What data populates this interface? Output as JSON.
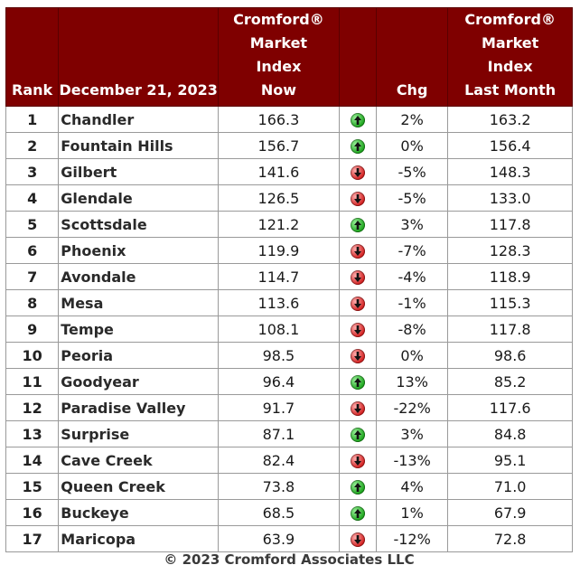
{
  "header": {
    "rank": "Rank",
    "date": "December 21, 2023",
    "now_lines": [
      "Cromford®",
      "Market",
      "Index",
      "Now"
    ],
    "chg": "Chg",
    "last_lines": [
      "Cromford®",
      "Market",
      "Index",
      "Last Month"
    ]
  },
  "colors": {
    "header_bg": "#7f0000",
    "up": "#1aa31a",
    "down": "#d11d1d"
  },
  "rows": [
    {
      "rank": "1",
      "name": "Chandler",
      "now": "166.3",
      "dir": "up",
      "chg": "2%",
      "last": "163.2"
    },
    {
      "rank": "2",
      "name": "Fountain Hills",
      "now": "156.7",
      "dir": "up",
      "chg": "0%",
      "last": "156.4"
    },
    {
      "rank": "3",
      "name": "Gilbert",
      "now": "141.6",
      "dir": "down",
      "chg": "-5%",
      "last": "148.3"
    },
    {
      "rank": "4",
      "name": "Glendale",
      "now": "126.5",
      "dir": "down",
      "chg": "-5%",
      "last": "133.0"
    },
    {
      "rank": "5",
      "name": "Scottsdale",
      "now": "121.2",
      "dir": "up",
      "chg": "3%",
      "last": "117.8"
    },
    {
      "rank": "6",
      "name": "Phoenix",
      "now": "119.9",
      "dir": "down",
      "chg": "-7%",
      "last": "128.3"
    },
    {
      "rank": "7",
      "name": "Avondale",
      "now": "114.7",
      "dir": "down",
      "chg": "-4%",
      "last": "118.9"
    },
    {
      "rank": "8",
      "name": "Mesa",
      "now": "113.6",
      "dir": "down",
      "chg": "-1%",
      "last": "115.3"
    },
    {
      "rank": "9",
      "name": "Tempe",
      "now": "108.1",
      "dir": "down",
      "chg": "-8%",
      "last": "117.8"
    },
    {
      "rank": "10",
      "name": "Peoria",
      "now": "98.5",
      "dir": "down",
      "chg": "0%",
      "last": "98.6"
    },
    {
      "rank": "11",
      "name": "Goodyear",
      "now": "96.4",
      "dir": "up",
      "chg": "13%",
      "last": "85.2"
    },
    {
      "rank": "12",
      "name": "Paradise Valley",
      "now": "91.7",
      "dir": "down",
      "chg": "-22%",
      "last": "117.6"
    },
    {
      "rank": "13",
      "name": "Surprise",
      "now": "87.1",
      "dir": "up",
      "chg": "3%",
      "last": "84.8"
    },
    {
      "rank": "14",
      "name": "Cave Creek",
      "now": "82.4",
      "dir": "down",
      "chg": "-13%",
      "last": "95.1"
    },
    {
      "rank": "15",
      "name": "Queen Creek",
      "now": "73.8",
      "dir": "up",
      "chg": "4%",
      "last": "71.0"
    },
    {
      "rank": "16",
      "name": "Buckeye",
      "now": "68.5",
      "dir": "up",
      "chg": "1%",
      "last": "67.9"
    },
    {
      "rank": "17",
      "name": "Maricopa",
      "now": "63.9",
      "dir": "down",
      "chg": "-12%",
      "last": "72.8"
    }
  ],
  "footer": "© 2023 Cromford Associates LLC"
}
